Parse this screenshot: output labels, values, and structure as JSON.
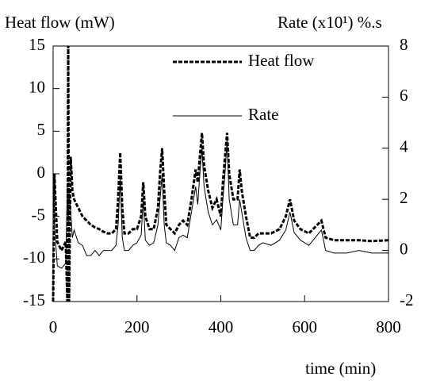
{
  "chart_data": {
    "type": "line",
    "y_label": "Heat flow (mW)",
    "y2_label": "Rate (x10¹) %.s",
    "x_label": "time (min)",
    "x": [
      0,
      3,
      10,
      20,
      30,
      34,
      36,
      38,
      42,
      46,
      50,
      60,
      70,
      80,
      90,
      100,
      110,
      120,
      130,
      140,
      150,
      155,
      160,
      165,
      170,
      180,
      190,
      200,
      210,
      215,
      220,
      230,
      240,
      250,
      255,
      260,
      265,
      270,
      280,
      290,
      300,
      310,
      320,
      330,
      340,
      345,
      350,
      355,
      360,
      370,
      380,
      390,
      400,
      405,
      410,
      415,
      420,
      430,
      440,
      445,
      450,
      460,
      470,
      480,
      490,
      500,
      520,
      540,
      555,
      565,
      575,
      590,
      610,
      630,
      640,
      650,
      670,
      700,
      730,
      760,
      800
    ],
    "series": [
      {
        "name": "Heat flow",
        "color": "#000000",
        "line_style": "dashed",
        "axis": "y",
        "values": [
          -15,
          0,
          -8,
          -9,
          -8,
          -15,
          15,
          -15,
          2,
          -2,
          -3,
          -4,
          -5,
          -5.5,
          -6,
          -6.3,
          -6.5,
          -6.8,
          -7,
          -7,
          -6.5,
          -3,
          2.5,
          -4,
          -7,
          -7,
          -6.5,
          -6.5,
          -5,
          -1,
          -5,
          -6.5,
          -6.5,
          -4,
          0,
          3,
          -2,
          -6,
          -6.5,
          -7,
          -6,
          -5.5,
          -6,
          -3,
          0.5,
          -1,
          2,
          4.8,
          1,
          -2,
          -4,
          -3,
          -5,
          -1,
          2,
          4.8,
          0,
          -3,
          -3,
          0.5,
          -2,
          -5,
          -7.5,
          -7.5,
          -7,
          -7,
          -7,
          -6.5,
          -5,
          -3,
          -5.5,
          -6.5,
          -7,
          -6,
          -5.5,
          -7.5,
          -7.8,
          -7.8,
          -7.8,
          -7.9,
          -7.8
        ]
      },
      {
        "name": "Rate",
        "color": "#000000",
        "line_style": "solid",
        "axis": "y2",
        "values": [
          3,
          1,
          -0.6,
          -0.7,
          -0.5,
          2.5,
          1,
          2.3,
          1.5,
          0.5,
          0.8,
          0.3,
          0.2,
          -0.2,
          -0.2,
          0,
          -0.2,
          0,
          0,
          0,
          0.2,
          1,
          2.8,
          0.5,
          0,
          0,
          0.2,
          0.3,
          0.6,
          2,
          0.4,
          0.2,
          0.3,
          1,
          2,
          3,
          1,
          0.3,
          0.2,
          0,
          0.5,
          0.6,
          0.5,
          1.5,
          2.5,
          1.8,
          3,
          4,
          2.5,
          1.5,
          1,
          1.2,
          0.8,
          2,
          3,
          4.3,
          2,
          1,
          1,
          2,
          1.5,
          0.5,
          0,
          0,
          0.2,
          0.3,
          0.2,
          0.4,
          0.8,
          1.5,
          0.7,
          0.4,
          0.2,
          0.6,
          0.8,
          0,
          -0.1,
          -0.1,
          0,
          -0.1,
          -0.1
        ]
      }
    ],
    "xlim": [
      0,
      800
    ],
    "xticks": [
      0,
      200,
      400,
      600,
      800
    ],
    "ylim": [
      -15,
      15
    ],
    "yticks": [
      -15,
      -10,
      -5,
      0,
      5,
      10,
      15
    ],
    "y2lim": [
      -2,
      8
    ],
    "y2ticks": [
      -2,
      0,
      2,
      4,
      6,
      8
    ],
    "grid": false
  }
}
